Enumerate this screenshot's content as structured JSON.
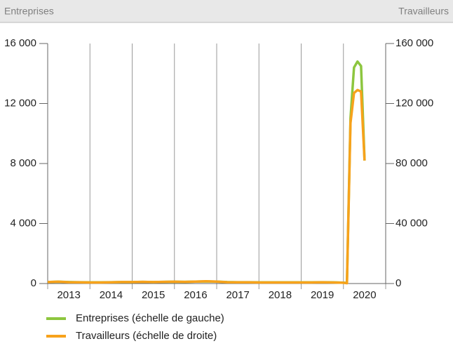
{
  "chart_data": {
    "type": "line",
    "header": {
      "left": "Entreprises",
      "right": "Travailleurs"
    },
    "categories": [
      "2013",
      "2014",
      "2015",
      "2016",
      "2017",
      "2018",
      "2019",
      "2020"
    ],
    "xlim": [
      2013,
      2021
    ],
    "xticks": [
      2013,
      2014,
      2015,
      2016,
      2017,
      2018,
      2019,
      2020,
      2021
    ],
    "ylim": [
      0,
      16000
    ],
    "yticks": [
      0,
      {
        "value": 4000,
        "label": "4 000"
      },
      {
        "value": 8000,
        "label": "8 000"
      },
      {
        "value": 12000,
        "label": "12 000"
      },
      {
        "value": 16000,
        "label": "16 000"
      }
    ],
    "y2lim": [
      0,
      160000
    ],
    "y2ticks": [
      0,
      {
        "value": 40000,
        "label": "40 000"
      },
      {
        "value": 80000,
        "label": "80 000"
      },
      {
        "value": 120000,
        "label": "120 000"
      },
      {
        "value": 160000,
        "label": "160 000"
      }
    ],
    "x": [
      2013,
      2013.25,
      2013.5,
      2013.75,
      2014,
      2014.25,
      2014.5,
      2014.75,
      2015,
      2015.25,
      2015.5,
      2015.75,
      2016,
      2016.25,
      2016.5,
      2016.75,
      2017,
      2017.25,
      2017.5,
      2017.75,
      2018,
      2018.25,
      2018.5,
      2018.75,
      2019,
      2019.25,
      2019.5,
      2019.75,
      2020,
      2020.083,
      2020.167,
      2020.25,
      2020.333,
      2020.417,
      2020.5
    ],
    "series": [
      {
        "name": "Entreprises (échelle de gauche)",
        "color": "#8dc63f",
        "values": [
          100,
          120,
          100,
          90,
          80,
          80,
          90,
          100,
          100,
          110,
          100,
          110,
          120,
          110,
          130,
          140,
          130,
          100,
          90,
          90,
          80,
          80,
          80,
          80,
          80,
          80,
          90,
          80,
          60,
          40,
          11000,
          14400,
          14800,
          14500,
          8200
        ]
      },
      {
        "name": "Travailleurs (échelle de droite)",
        "color": "#f7a21b",
        "axis": "y2",
        "values": [
          1000,
          1200,
          900,
          800,
          700,
          700,
          800,
          1000,
          1000,
          1100,
          1000,
          1100,
          1200,
          1100,
          1300,
          1500,
          1300,
          900,
          800,
          800,
          700,
          700,
          700,
          700,
          700,
          700,
          800,
          700,
          500,
          200,
          107000,
          127000,
          129000,
          128000,
          82000
        ]
      }
    ]
  }
}
